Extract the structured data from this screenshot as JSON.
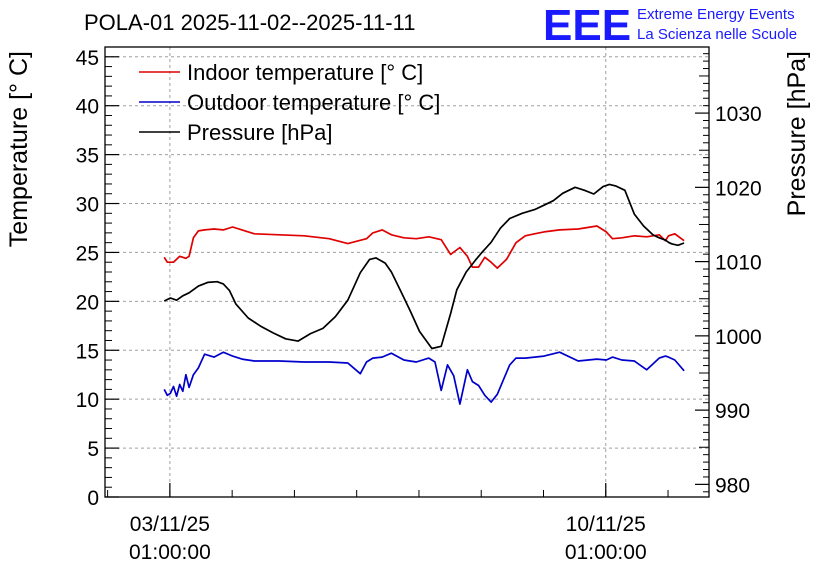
{
  "title": "POLA-01 2025-11-02--2025-11-11",
  "logo": {
    "mark": "EEE",
    "line1": "Extreme Energy Events",
    "line2": "La Scienza nelle Scuole",
    "color": "#1a1aff"
  },
  "axes": {
    "left_label": "Temperature [° C]",
    "right_label": "Pressure [hPa]",
    "left_ticks": [
      "0",
      "5",
      "10",
      "15",
      "20",
      "25",
      "30",
      "35",
      "40",
      "45"
    ],
    "right_ticks": [
      "980",
      "990",
      "1000",
      "1010",
      "1020",
      "1030"
    ],
    "x_ticks": [
      {
        "date": "03/11/25",
        "time": "01:00:00"
      },
      {
        "date": "10/11/25",
        "time": "01:00:00"
      }
    ]
  },
  "legend": [
    {
      "label": "Indoor temperature [° C]",
      "color": "#e00000"
    },
    {
      "label": "Outdoor temperature [° C]",
      "color": "#0000cc"
    },
    {
      "label": "Pressure [hPa]",
      "color": "#000000"
    }
  ],
  "chart_data": {
    "type": "line",
    "title": "POLA-01 2025-11-02--2025-11-11",
    "xlabel": "",
    "x_unit": "days since 2025-11-02 00:00",
    "xlim": [
      0,
      9.7
    ],
    "ylabel": "Temperature [° C]",
    "ylim": [
      0,
      46
    ],
    "y2label": "Pressure [hPa]",
    "y2lim": [
      978.3,
      1038.9
    ],
    "x_tick_values": [
      1.042,
      8.042
    ],
    "grid": true,
    "legend_position": "top-left",
    "series": [
      {
        "name": "Indoor temperature [° C]",
        "axis": "left",
        "color": "#e00000",
        "x": [
          0.95,
          1.0,
          1.1,
          1.2,
          1.3,
          1.35,
          1.42,
          1.5,
          1.6,
          1.75,
          1.9,
          2.05,
          2.2,
          2.4,
          2.8,
          3.2,
          3.6,
          3.9,
          4.2,
          4.3,
          4.45,
          4.6,
          4.8,
          5.0,
          5.2,
          5.4,
          5.55,
          5.7,
          5.82,
          5.9,
          6.0,
          6.1,
          6.2,
          6.3,
          6.45,
          6.6,
          6.75,
          6.9,
          7.05,
          7.3,
          7.6,
          7.9,
          8.05,
          8.15,
          8.3,
          8.5,
          8.7,
          8.9,
          9.0,
          9.05,
          9.15,
          9.3
        ],
        "values": [
          24.5,
          24.0,
          24.0,
          24.6,
          24.4,
          24.6,
          26.5,
          27.2,
          27.3,
          27.4,
          27.3,
          27.6,
          27.3,
          26.9,
          26.8,
          26.7,
          26.4,
          25.9,
          26.4,
          27.0,
          27.3,
          26.8,
          26.5,
          26.4,
          26.6,
          26.3,
          24.8,
          25.5,
          24.6,
          23.5,
          23.5,
          24.5,
          24.0,
          23.4,
          24.3,
          26.0,
          26.7,
          26.9,
          27.1,
          27.3,
          27.4,
          27.7,
          27.1,
          26.4,
          26.5,
          26.7,
          26.6,
          26.8,
          26.2,
          26.7,
          26.9,
          26.2
        ]
      },
      {
        "name": "Outdoor temperature [° C]",
        "axis": "left",
        "color": "#0000cc",
        "x": [
          0.95,
          1.0,
          1.05,
          1.1,
          1.15,
          1.2,
          1.25,
          1.3,
          1.35,
          1.42,
          1.5,
          1.6,
          1.75,
          1.9,
          2.05,
          2.2,
          2.4,
          2.8,
          3.2,
          3.6,
          3.9,
          4.1,
          4.2,
          4.3,
          4.45,
          4.6,
          4.8,
          5.0,
          5.2,
          5.3,
          5.4,
          5.5,
          5.6,
          5.7,
          5.82,
          5.9,
          6.0,
          6.1,
          6.2,
          6.3,
          6.4,
          6.5,
          6.6,
          6.75,
          6.9,
          7.05,
          7.3,
          7.6,
          7.9,
          8.05,
          8.15,
          8.3,
          8.5,
          8.7,
          8.9,
          9.0,
          9.05,
          9.15,
          9.3
        ],
        "values": [
          11.0,
          10.4,
          10.6,
          11.3,
          10.3,
          11.5,
          10.8,
          12.5,
          11.2,
          12.5,
          13.2,
          14.6,
          14.3,
          14.8,
          14.4,
          14.1,
          13.9,
          13.9,
          13.8,
          13.8,
          13.7,
          12.6,
          13.8,
          14.2,
          14.3,
          14.7,
          14.0,
          13.8,
          14.2,
          13.8,
          10.9,
          13.5,
          12.4,
          9.5,
          13.0,
          11.8,
          11.4,
          10.4,
          9.7,
          10.5,
          12.0,
          13.5,
          14.2,
          14.2,
          14.3,
          14.4,
          14.8,
          13.9,
          14.1,
          14.0,
          14.3,
          14.0,
          13.9,
          13.0,
          14.2,
          14.4,
          14.3,
          14.0,
          12.9
        ]
      },
      {
        "name": "Pressure [hPa]",
        "axis": "right",
        "color": "#000000",
        "x": [
          0.95,
          1.05,
          1.15,
          1.25,
          1.35,
          1.5,
          1.65,
          1.8,
          1.9,
          2.0,
          2.1,
          2.3,
          2.5,
          2.7,
          2.9,
          3.1,
          3.3,
          3.5,
          3.7,
          3.9,
          4.1,
          4.25,
          4.35,
          4.5,
          4.6,
          4.75,
          4.9,
          5.05,
          5.25,
          5.4,
          5.55,
          5.65,
          5.8,
          5.95,
          6.05,
          6.2,
          6.35,
          6.5,
          6.7,
          6.9,
          7.05,
          7.2,
          7.35,
          7.55,
          7.7,
          7.85,
          8.0,
          8.1,
          8.2,
          8.35,
          8.5,
          8.65,
          8.8,
          8.9,
          9.0,
          9.05,
          9.1,
          9.2,
          9.3
        ],
        "values": [
          1004.7,
          1005.1,
          1004.8,
          1005.4,
          1005.8,
          1006.7,
          1007.2,
          1007.3,
          1007.0,
          1006.1,
          1004.3,
          1002.4,
          1001.3,
          1000.4,
          999.6,
          999.3,
          1000.3,
          1001.0,
          1002.6,
          1004.8,
          1008.5,
          1010.3,
          1010.5,
          1009.8,
          1008.6,
          1006.0,
          1003.4,
          1000.6,
          998.3,
          998.6,
          1003.0,
          1006.2,
          1008.6,
          1010.2,
          1011.2,
          1012.6,
          1014.5,
          1015.8,
          1016.5,
          1017.0,
          1017.6,
          1018.2,
          1019.2,
          1020.0,
          1019.6,
          1019.1,
          1020.1,
          1020.4,
          1020.2,
          1019.6,
          1016.4,
          1014.8,
          1013.6,
          1013.2,
          1012.9,
          1012.6,
          1012.4,
          1012.2,
          1012.5
        ]
      }
    ]
  }
}
